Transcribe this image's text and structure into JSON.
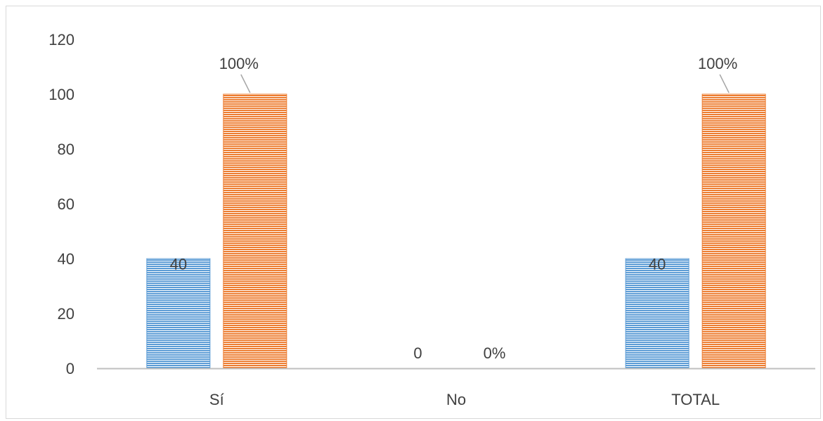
{
  "chart_data": {
    "type": "bar",
    "categories": [
      "Sí",
      "No",
      "TOTAL"
    ],
    "series": [
      {
        "values": [
          40,
          0,
          40
        ],
        "labels": [
          "40",
          "0",
          "40"
        ],
        "color": "#5b9bd5"
      },
      {
        "values": [
          100,
          0,
          100
        ],
        "labels": [
          "100%",
          "0%",
          "100%"
        ],
        "color": "#ed7d31"
      }
    ],
    "title": "",
    "xlabel": "",
    "ylabel": "",
    "ylim": [
      0,
      120
    ],
    "yticks": [
      0,
      20,
      40,
      60,
      80,
      100,
      120
    ],
    "grid": false,
    "legend": "none",
    "bar_pattern": "horizontal-stripes"
  }
}
